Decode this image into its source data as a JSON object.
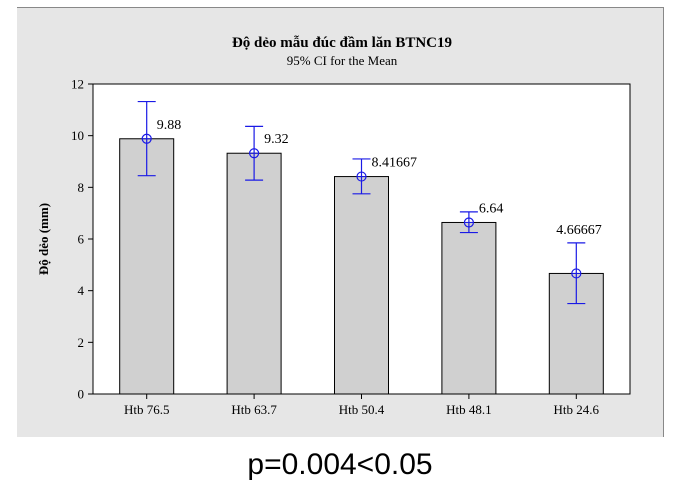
{
  "chart_data": {
    "type": "bar",
    "title": "Độ dẻo mẫu đúc đầm lăn BTNC19",
    "subtitle": "95% CI for the Mean",
    "xlabel": "",
    "ylabel": "Độ dẻo (mm)",
    "ylim": [
      0,
      12
    ],
    "yticks": [
      0,
      2,
      4,
      6,
      8,
      10,
      12
    ],
    "categories": [
      "Htb 76.5",
      "Htb 63.7",
      "Htb 50.4",
      "Htb 48.1",
      "Htb 24.6"
    ],
    "values": [
      9.88,
      9.32,
      8.41667,
      6.64,
      4.66667
    ],
    "value_labels": [
      "9.88",
      "9.32",
      "8.41667",
      "6.64",
      "4.66667"
    ],
    "ci_low": [
      8.45,
      8.28,
      7.75,
      6.25,
      3.5
    ],
    "ci_high": [
      11.32,
      10.36,
      9.1,
      7.05,
      5.85
    ],
    "bar_color": "#d0d0d0",
    "errorbar_color": "#1a1ae6",
    "plot_bg": "#ffffff",
    "frame_bg": "#e6e6e6"
  },
  "caption": "p=0.004<0.05"
}
